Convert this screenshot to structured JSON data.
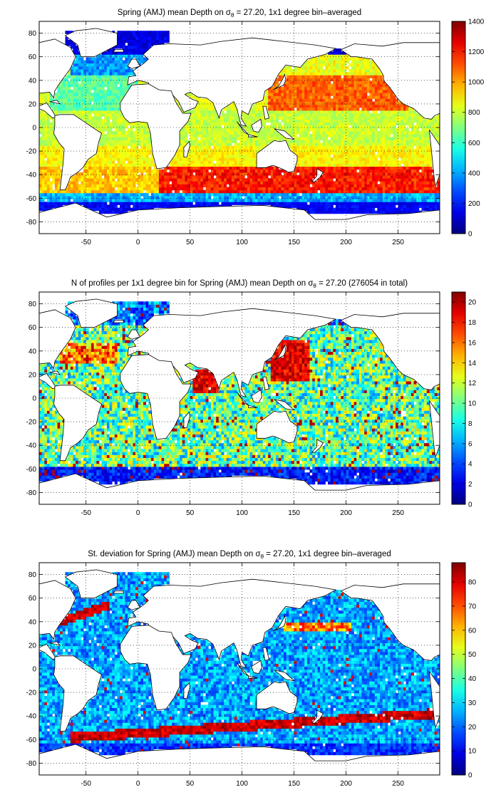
{
  "chart_data": [
    {
      "type": "heatmap",
      "title": "Spring (AMJ) mean Depth on σθ = 27.20, 1x1 degree bin–averaged",
      "title_parts": {
        "prefix": "Spring (AMJ) mean Depth on ",
        "sigma": "σ",
        "sub": "θ",
        "suffix": " = 27.20, 1x1 degree bin–averaged"
      },
      "xlabel": "",
      "ylabel": "",
      "xlim": [
        -95,
        290
      ],
      "ylim": [
        -90,
        90
      ],
      "xticks": [
        -50,
        0,
        50,
        100,
        150,
        200,
        250
      ],
      "yticks": [
        -80,
        -60,
        -40,
        -20,
        0,
        20,
        40,
        60,
        80
      ],
      "grid": true,
      "colormap": "jet",
      "colorbar": {
        "min": 0,
        "max": 1400,
        "ticks": [
          0,
          200,
          400,
          600,
          800,
          1000,
          1200,
          1400
        ]
      },
      "field": "depth",
      "zones": [
        {
          "lat_range": [
            0,
            45
          ],
          "lon_range": [
            130,
            250
          ],
          "approx_value": 1100
        },
        {
          "lat_range": [
            -55,
            -30
          ],
          "lon_range": [
            20,
            290
          ],
          "approx_value": 1200
        },
        {
          "lat_range": [
            -30,
            30
          ],
          "lon_range": [
            -60,
            130
          ],
          "approx_value": 750
        },
        {
          "lat_range": [
            -75,
            -60
          ],
          "lon_range": [
            -95,
            290
          ],
          "approx_value": 150
        },
        {
          "lat_range": [
            50,
            70
          ],
          "lon_range": [
            -60,
            0
          ],
          "approx_value": 200
        }
      ]
    },
    {
      "type": "heatmap",
      "title": "N of profiles per 1x1 degree bin for Spring (AMJ) mean Depth on σθ = 27.20 (276054 in total)",
      "title_parts": {
        "prefix": "N of profiles per 1x1 degree bin for Spring (AMJ) mean Depth on ",
        "sigma": "σ",
        "sub": "θ",
        "suffix": " = 27.20 (276054 in total)"
      },
      "xlabel": "",
      "ylabel": "",
      "xlim": [
        -95,
        290
      ],
      "ylim": [
        -90,
        90
      ],
      "xticks": [
        -50,
        0,
        50,
        100,
        150,
        200,
        250
      ],
      "yticks": [
        -80,
        -60,
        -40,
        -20,
        0,
        20,
        40,
        60,
        80
      ],
      "grid": true,
      "colormap": "jet",
      "colorbar": {
        "min": 0,
        "max": 21,
        "ticks": [
          0,
          2,
          4,
          6,
          8,
          10,
          12,
          14,
          16,
          18,
          20
        ]
      },
      "field": "count",
      "total_profiles": 276054,
      "zones": [
        {
          "lat_range": [
            15,
            50
          ],
          "lon_range": [
            130,
            160
          ],
          "approx_value": 20
        },
        {
          "lat_range": [
            5,
            25
          ],
          "lon_range": [
            55,
            75
          ],
          "approx_value": 20
        },
        {
          "lat_range": [
            -60,
            60
          ],
          "lon_range": [
            -95,
            290
          ],
          "approx_value": 8
        }
      ]
    },
    {
      "type": "heatmap",
      "title": "St. deviation for Spring (AMJ) mean Depth on σθ = 27.20, 1x1 degree bin–averaged",
      "title_parts": {
        "prefix": "St. deviation for Spring (AMJ) mean Depth on ",
        "sigma": "σ",
        "sub": "θ",
        "suffix": " = 27.20, 1x1 degree bin–averaged"
      },
      "xlabel": "",
      "ylabel": "",
      "xlim": [
        -95,
        290
      ],
      "ylim": [
        -90,
        90
      ],
      "xticks": [
        -50,
        0,
        50,
        100,
        150,
        200,
        250
      ],
      "yticks": [
        -80,
        -60,
        -40,
        -20,
        0,
        20,
        40,
        60,
        80
      ],
      "grid": true,
      "colormap": "jet",
      "colorbar": {
        "min": 0,
        "max": 88,
        "ticks": [
          0,
          10,
          20,
          30,
          40,
          50,
          60,
          70,
          80
        ]
      },
      "field": "std",
      "zones": [
        {
          "lat_range": [
            -60,
            -40
          ],
          "lon_range": [
            -60,
            230
          ],
          "approx_value": 80
        },
        {
          "lat_range": [
            35,
            55
          ],
          "lon_range": [
            -75,
            -30
          ],
          "approx_value": 80
        },
        {
          "lat_range": [
            30,
            40
          ],
          "lon_range": [
            140,
            200
          ],
          "approx_value": 60
        },
        {
          "lat_range": [
            -30,
            30
          ],
          "lon_range": [
            -95,
            290
          ],
          "approx_value": 25
        }
      ]
    }
  ],
  "colors": {
    "ocean_jet": [
      "#00008f",
      "#0000ff",
      "#0080ff",
      "#00ffff",
      "#80ff80",
      "#ffff00",
      "#ff8000",
      "#ff0000",
      "#800000"
    ],
    "land": "#ffffff",
    "frame": "#000000"
  }
}
